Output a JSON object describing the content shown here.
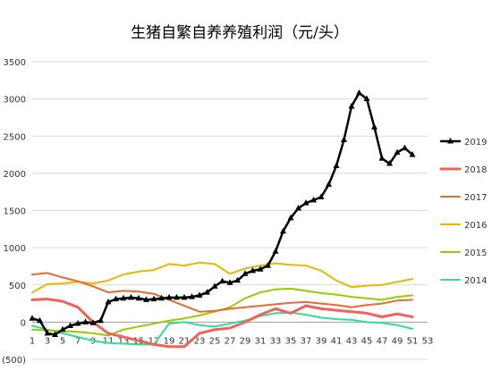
{
  "chart_data": {
    "type": "line",
    "title": "生猪自繁自养养殖利润（元/头）",
    "xlabel": "",
    "ylabel": "",
    "xlim": [
      1,
      53
    ],
    "ylim": [
      -500,
      3500
    ],
    "y_ticks": [
      3500,
      3000,
      2500,
      2000,
      1500,
      1000,
      500,
      0,
      -500
    ],
    "y_tick_labels": [
      "3500",
      "3000",
      "2500",
      "2000",
      "1500",
      "1000",
      "500",
      "0",
      "(500)"
    ],
    "x_ticks": [
      1,
      3,
      5,
      7,
      9,
      11,
      13,
      15,
      17,
      19,
      21,
      23,
      25,
      27,
      29,
      31,
      33,
      35,
      37,
      39,
      41,
      43,
      45,
      47,
      49,
      51,
      53
    ],
    "grid": "horizontal",
    "legend_position": "right",
    "series": [
      {
        "name": "2019",
        "color": "#000000",
        "width": 2.5,
        "marker": "triangle",
        "x": [
          1,
          2,
          3,
          4,
          5,
          6,
          7,
          8,
          9,
          10,
          11,
          12,
          13,
          14,
          15,
          16,
          17,
          18,
          19,
          20,
          21,
          22,
          23,
          24,
          25,
          26,
          27,
          28,
          29,
          30,
          31,
          32,
          33,
          34,
          35,
          36,
          37,
          38,
          39,
          40,
          41,
          42,
          43,
          44,
          45,
          46,
          47,
          48,
          49,
          50,
          51
        ],
        "y": [
          50,
          20,
          -150,
          -170,
          -100,
          -50,
          -20,
          0,
          -10,
          20,
          270,
          310,
          320,
          330,
          320,
          300,
          310,
          320,
          330,
          330,
          330,
          340,
          360,
          400,
          480,
          550,
          530,
          560,
          650,
          690,
          710,
          760,
          950,
          1220,
          1400,
          1530,
          1600,
          1640,
          1680,
          1850,
          2100,
          2450,
          2900,
          3080,
          3000,
          2620,
          2200,
          2130,
          2280,
          2340,
          2250
        ]
      },
      {
        "name": "2018",
        "color": "#f0625c",
        "width": 3,
        "x": [
          1,
          3,
          5,
          7,
          9,
          11,
          13,
          15,
          17,
          19,
          21,
          23,
          25,
          27,
          29,
          31,
          33,
          35,
          37,
          39,
          41,
          43,
          45,
          47,
          49,
          51
        ],
        "y": [
          300,
          310,
          280,
          200,
          0,
          -150,
          -200,
          -250,
          -300,
          -330,
          -330,
          -150,
          -100,
          -80,
          0,
          100,
          180,
          120,
          220,
          180,
          160,
          140,
          120,
          70,
          110,
          70
        ]
      },
      {
        "name": "2017",
        "color": "#e86a2f",
        "width": 2,
        "x": [
          1,
          3,
          5,
          7,
          9,
          11,
          13,
          15,
          17,
          19,
          21,
          23,
          25,
          27,
          29,
          31,
          33,
          35,
          37,
          39,
          41,
          43,
          45,
          47,
          49,
          51
        ],
        "y": [
          640,
          660,
          600,
          550,
          480,
          400,
          420,
          410,
          380,
          300,
          220,
          140,
          150,
          180,
          200,
          220,
          240,
          260,
          270,
          250,
          230,
          200,
          230,
          250,
          290,
          300
        ]
      },
      {
        "name": "2016",
        "color": "#e6b800",
        "width": 2,
        "x": [
          1,
          3,
          5,
          7,
          9,
          11,
          13,
          15,
          17,
          19,
          21,
          23,
          25,
          27,
          29,
          31,
          33,
          35,
          37,
          39,
          41,
          43,
          45,
          47,
          49,
          51
        ],
        "y": [
          400,
          510,
          520,
          540,
          520,
          560,
          640,
          680,
          700,
          780,
          760,
          800,
          780,
          650,
          720,
          760,
          790,
          770,
          760,
          690,
          560,
          470,
          490,
          500,
          540,
          580
        ]
      },
      {
        "name": "2015",
        "color": "#99cc00",
        "width": 2,
        "x": [
          1,
          3,
          5,
          7,
          9,
          11,
          13,
          15,
          17,
          19,
          21,
          23,
          25,
          27,
          29,
          31,
          33,
          35,
          37,
          39,
          41,
          43,
          45,
          47,
          49,
          51
        ],
        "y": [
          -100,
          -110,
          -120,
          -130,
          -150,
          -180,
          -100,
          -60,
          -20,
          20,
          50,
          90,
          140,
          200,
          320,
          400,
          440,
          450,
          420,
          390,
          370,
          340,
          320,
          300,
          340,
          360
        ]
      },
      {
        "name": "2014",
        "color": "#33dd99",
        "width": 2,
        "x": [
          1,
          3,
          5,
          7,
          9,
          11,
          13,
          15,
          17,
          19,
          21,
          23,
          25,
          27,
          29,
          31,
          33,
          35,
          37,
          39,
          41,
          43,
          45,
          47,
          49,
          51
        ],
        "y": [
          -50,
          -100,
          -150,
          -200,
          -250,
          -280,
          -290,
          -300,
          -300,
          -20,
          0,
          -40,
          -60,
          -20,
          20,
          80,
          120,
          130,
          100,
          60,
          40,
          30,
          0,
          -10,
          -40,
          -90
        ]
      }
    ]
  }
}
